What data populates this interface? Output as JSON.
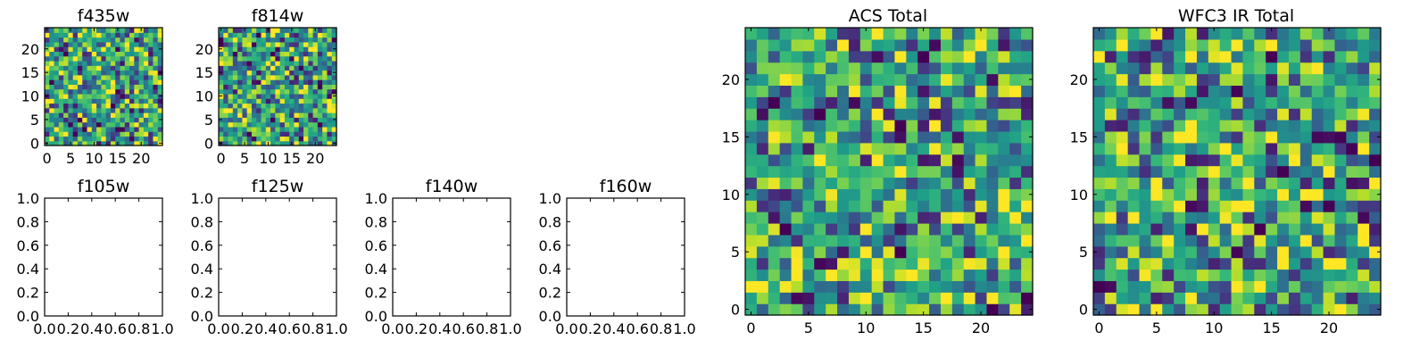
{
  "chart_data": [
    {
      "type": "heatmap",
      "title": "f435w",
      "xticks": [
        "0",
        "5",
        "10",
        "15",
        "20"
      ],
      "yticks": [
        "0",
        "5",
        "10",
        "15",
        "20"
      ],
      "xlim": [
        0,
        25
      ],
      "ylim": [
        0,
        25
      ],
      "rows": 25,
      "cols": 25,
      "colormap": "viridis",
      "seed": 11
    },
    {
      "type": "heatmap",
      "title": "f814w",
      "xticks": [
        "0",
        "5",
        "10",
        "15",
        "20"
      ],
      "yticks": [
        "0",
        "5",
        "10",
        "15",
        "20"
      ],
      "xlim": [
        0,
        25
      ],
      "ylim": [
        0,
        25
      ],
      "rows": 25,
      "cols": 25,
      "colormap": "viridis",
      "seed": 23
    },
    {
      "type": "heatmap",
      "title": "ACS Total",
      "xticks": [
        "0",
        "5",
        "10",
        "15",
        "20"
      ],
      "yticks": [
        "0",
        "5",
        "10",
        "15",
        "20"
      ],
      "xlim": [
        0,
        25
      ],
      "ylim": [
        0,
        25
      ],
      "rows": 25,
      "cols": 25,
      "colormap": "viridis",
      "seed": 37
    },
    {
      "type": "heatmap",
      "title": "WFC3 IR Total",
      "xticks": [
        "0",
        "5",
        "10",
        "15",
        "20"
      ],
      "yticks": [
        "0",
        "5",
        "10",
        "15",
        "20"
      ],
      "xlim": [
        0,
        25
      ],
      "ylim": [
        0,
        25
      ],
      "rows": 25,
      "cols": 25,
      "colormap": "viridis",
      "seed": 53
    },
    {
      "type": "scatter",
      "title": "f105w",
      "xticks": [
        "0.0",
        "0.2",
        "0.4",
        "0.6",
        "0.8",
        "1.0"
      ],
      "yticks": [
        "0.0",
        "0.2",
        "0.4",
        "0.6",
        "0.8",
        "1.0"
      ],
      "xlim": [
        0,
        1
      ],
      "ylim": [
        0,
        1
      ],
      "values": []
    },
    {
      "type": "scatter",
      "title": "f125w",
      "xticks": [
        "0.0",
        "0.2",
        "0.4",
        "0.6",
        "0.8",
        "1.0"
      ],
      "yticks": [
        "0.0",
        "0.2",
        "0.4",
        "0.6",
        "0.8",
        "1.0"
      ],
      "xlim": [
        0,
        1
      ],
      "ylim": [
        0,
        1
      ],
      "values": []
    },
    {
      "type": "scatter",
      "title": "f140w",
      "xticks": [
        "0.0",
        "0.2",
        "0.4",
        "0.6",
        "0.8",
        "1.0"
      ],
      "yticks": [
        "0.0",
        "0.2",
        "0.4",
        "0.6",
        "0.8",
        "1.0"
      ],
      "xlim": [
        0,
        1
      ],
      "ylim": [
        0,
        1
      ],
      "values": []
    },
    {
      "type": "scatter",
      "title": "f160w",
      "xticks": [
        "0.0",
        "0.2",
        "0.4",
        "0.6",
        "0.8",
        "1.0"
      ],
      "yticks": [
        "0.0",
        "0.2",
        "0.4",
        "0.6",
        "0.8",
        "1.0"
      ],
      "xlim": [
        0,
        1
      ],
      "ylim": [
        0,
        1
      ],
      "values": []
    }
  ]
}
